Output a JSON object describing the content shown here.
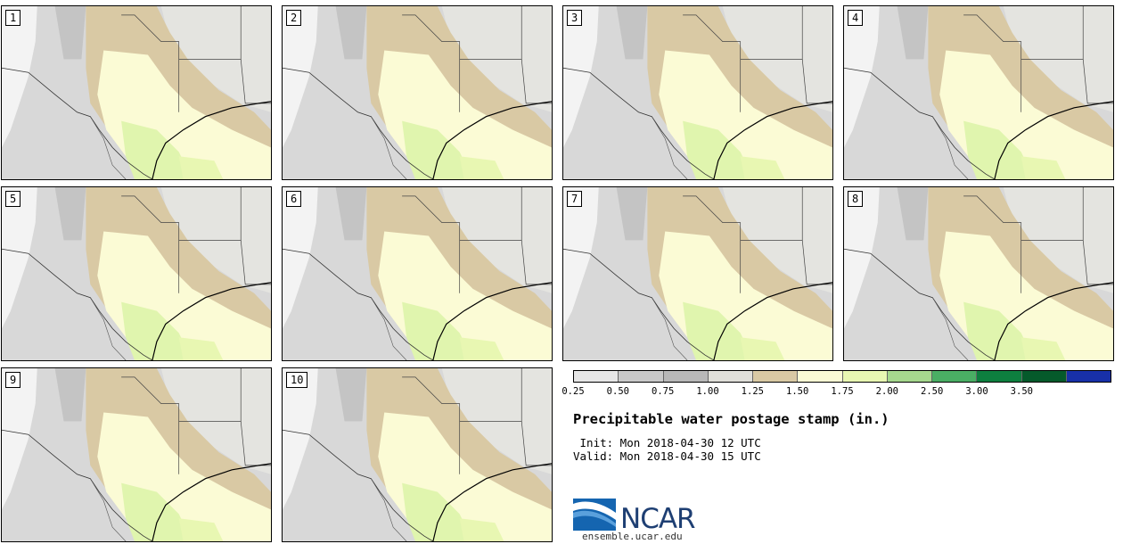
{
  "panels": [
    "1",
    "2",
    "3",
    "4",
    "5",
    "6",
    "7",
    "8",
    "9",
    "10"
  ],
  "legend": {
    "ticks": [
      "0.25",
      "0.50",
      "0.75",
      "1.00",
      "1.25",
      "1.50",
      "1.75",
      "2.00",
      "2.50",
      "3.00",
      "3.50"
    ],
    "colors": [
      "#e6e6e6",
      "#c9c9c9",
      "#b8b8b8",
      "#e0dfd9",
      "#d9c9a4",
      "#fbfbd5",
      "#e8f7b2",
      "#a6d88e",
      "#4aae64",
      "#0d7f3f",
      "#055a2b",
      "#1830a8"
    ]
  },
  "title": "Precipitable water postage stamp (in.)",
  "init": " Init: Mon 2018-04-30 12 UTC",
  "valid": "Valid: Mon 2018-04-30 15 UTC",
  "logo": {
    "text": "NCAR",
    "site": "ensemble.ucar.edu"
  }
}
